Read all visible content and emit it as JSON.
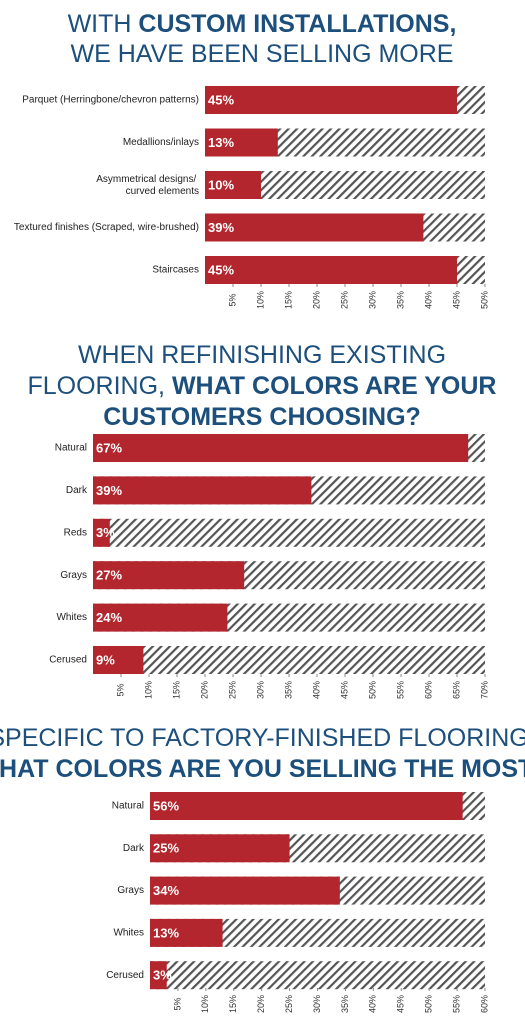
{
  "chart_data": [
    {
      "type": "hbar",
      "title_lines": [
        [
          {
            "text": "WITH ",
            "bold": false
          },
          {
            "text": "CUSTOM INSTALLATIONS,",
            "bold": true
          }
        ],
        [
          {
            "text": "WE HAVE BEEN SELLING MORE",
            "bold": false
          }
        ]
      ],
      "categories": [
        "Parquet (Herringbone/chevron patterns)",
        "Medallions/inlays",
        "Asymmetrical designs/\ncurved elements",
        "Textured finishes (Scraped, wire-brushed)",
        "Staircases"
      ],
      "values": [
        45,
        13,
        10,
        39,
        45
      ],
      "value_labels": [
        "45%",
        "13%",
        "10%",
        "39%",
        "45%"
      ],
      "color": "#b3262d",
      "xlim": [
        0,
        50
      ],
      "xticks": [
        {
          "value": 5,
          "label": "5%"
        },
        {
          "value": 10,
          "label": "10%"
        },
        {
          "value": 15,
          "label": "15%"
        },
        {
          "value": 20,
          "label": "20%"
        },
        {
          "value": 25,
          "label": "25%"
        },
        {
          "value": 30,
          "label": "30%"
        },
        {
          "value": 35,
          "label": "35%"
        },
        {
          "value": 40,
          "label": "40%"
        },
        {
          "value": 45,
          "label": "45%"
        },
        {
          "value": 50,
          "label": "50%"
        }
      ]
    },
    {
      "type": "hbar",
      "title_lines": [
        [
          {
            "text": "WHEN REFINISHING EXISTING",
            "bold": false
          }
        ],
        [
          {
            "text": "FLOORING, ",
            "bold": false
          },
          {
            "text": "WHAT COLORS ARE YOUR",
            "bold": true
          }
        ],
        [
          {
            "text": "CUSTOMERS CHOOSING?",
            "bold": true
          }
        ]
      ],
      "categories": [
        "Natural",
        "Dark",
        "Reds",
        "Grays",
        "Whites",
        "Cerused"
      ],
      "values": [
        67,
        39,
        3,
        27,
        24,
        9
      ],
      "value_labels": [
        "67%",
        "39%",
        "3%",
        "27%",
        "24%",
        "9%"
      ],
      "color": "#b3262d",
      "xlim": [
        0,
        70
      ],
      "xticks": [
        {
          "value": 5,
          "label": "5%"
        },
        {
          "value": 10,
          "label": "10%"
        },
        {
          "value": 15,
          "label": "15%"
        },
        {
          "value": 20,
          "label": "20%"
        },
        {
          "value": 25,
          "label": "25%"
        },
        {
          "value": 30,
          "label": "30%"
        },
        {
          "value": 35,
          "label": "35%"
        },
        {
          "value": 40,
          "label": "40%"
        },
        {
          "value": 45,
          "label": "45%"
        },
        {
          "value": 50,
          "label": "50%"
        },
        {
          "value": 55,
          "label": "55%"
        },
        {
          "value": 60,
          "label": "60%"
        },
        {
          "value": 65,
          "label": "65%"
        },
        {
          "value": 70,
          "label": "70%"
        }
      ]
    },
    {
      "type": "hbar",
      "title_lines": [
        [
          {
            "text": "SPECIFIC TO FACTORY-FINISHED FLOORING,",
            "bold": false
          }
        ],
        [
          {
            "text": "WHAT COLORS ARE YOU SELLING THE MOST?",
            "bold": true
          }
        ]
      ],
      "categories": [
        "Natural",
        "Dark",
        "Grays",
        "Whites",
        "Cerused"
      ],
      "values": [
        56,
        25,
        34,
        13,
        3
      ],
      "value_labels": [
        "56%",
        "25%",
        "34%",
        "13%",
        "3%"
      ],
      "color": "#b3262d",
      "xlim": [
        0,
        60
      ],
      "xticks": [
        {
          "value": 5,
          "label": "5%"
        },
        {
          "value": 10,
          "label": "10%"
        },
        {
          "value": 15,
          "label": "15%"
        },
        {
          "value": 20,
          "label": "20%"
        },
        {
          "value": 25,
          "label": "25%"
        },
        {
          "value": 30,
          "label": "30%"
        },
        {
          "value": 35,
          "label": "35%"
        },
        {
          "value": 40,
          "label": "40%"
        },
        {
          "value": 45,
          "label": "45%"
        },
        {
          "value": 50,
          "label": "50%"
        },
        {
          "value": 55,
          "label": "55%"
        },
        {
          "value": 60,
          "label": "60%"
        }
      ]
    }
  ]
}
